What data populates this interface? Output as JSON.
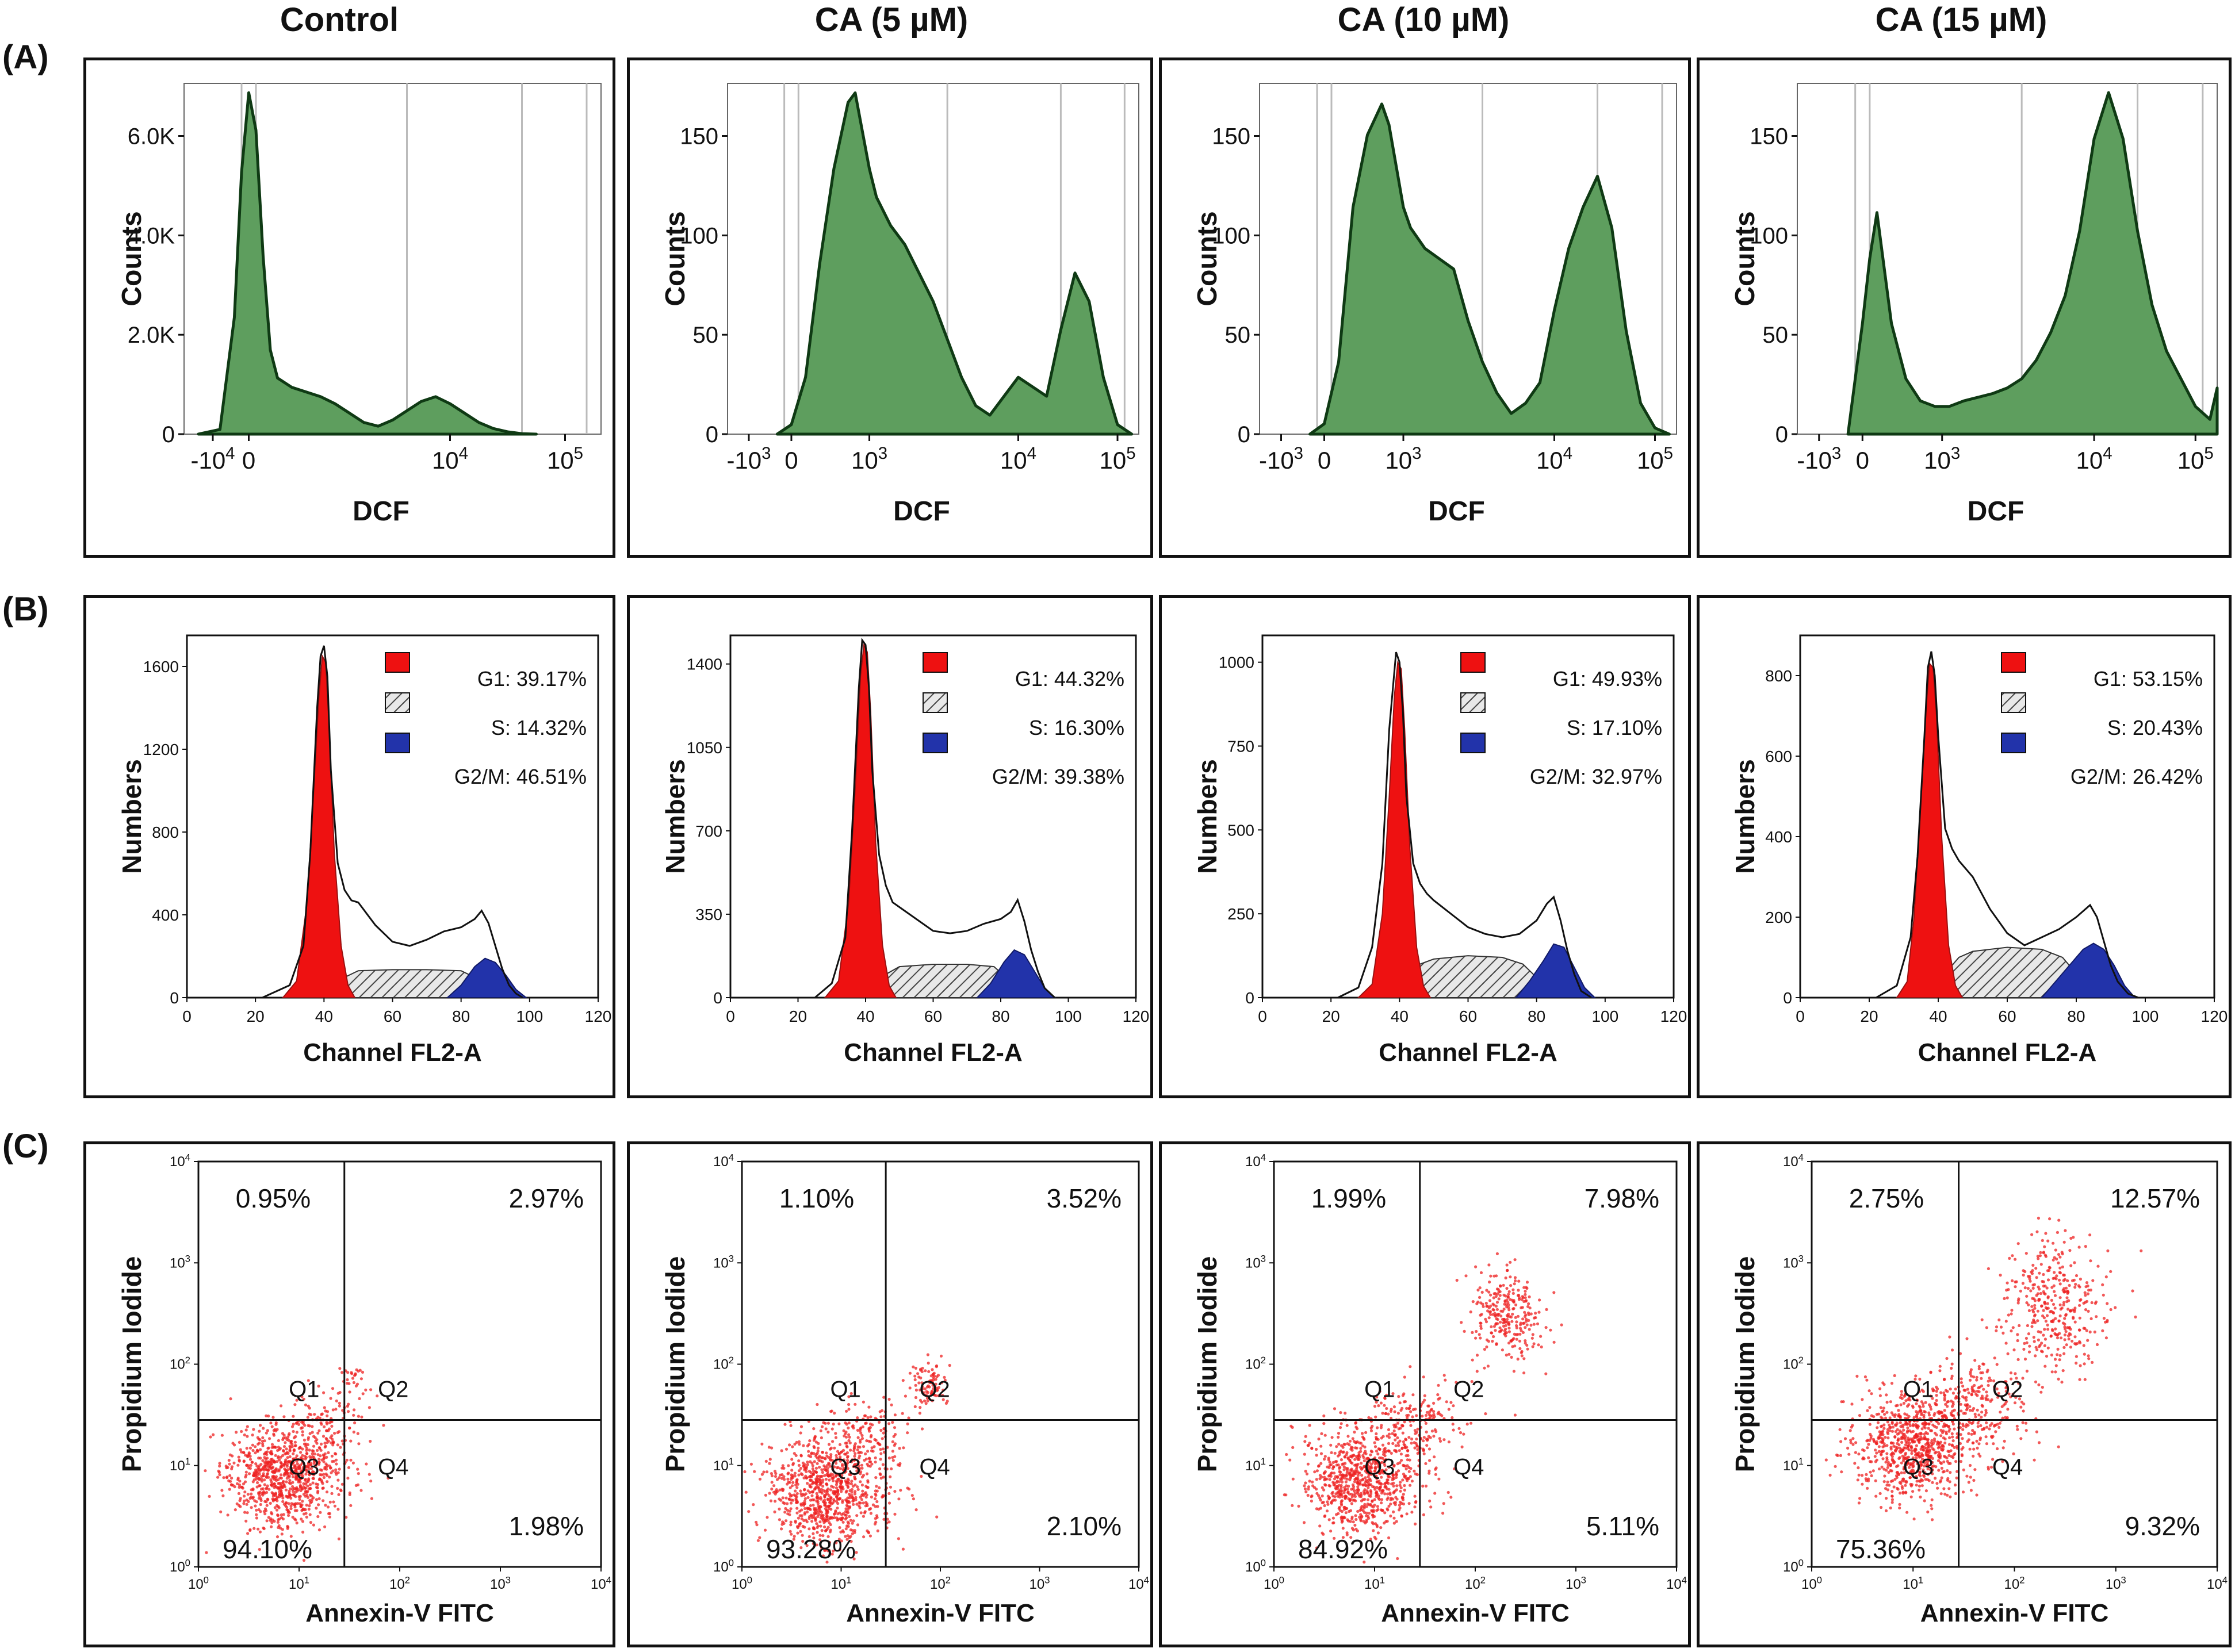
{
  "column_titles": [
    "Control",
    "CA (5 µM)",
    "CA (10 µM)",
    "CA (15 µM)"
  ],
  "row_labels": [
    "(A)",
    "(B)",
    "(C)"
  ],
  "colors": {
    "histogram_fill": "#5e9e5e",
    "histogram_line": "#0f3a14",
    "g1_fill": "#ee1111",
    "s_fill": "#cfcfcf",
    "g2m_fill": "#2233aa",
    "dot_color": "#ee2222"
  },
  "chart_data": [
    {
      "type": "area",
      "row": "A",
      "panel": "Control",
      "xlabel": "DCF",
      "ylabel": "Counts",
      "xtick_labels": [
        "-10^4",
        "0",
        "10^4",
        "10^5"
      ],
      "ytick_labels": [
        "0",
        "2.0K",
        "4.0K",
        "6.0K"
      ],
      "ylim": [
        0,
        7500
      ],
      "x": [
        -0.35,
        -0.2,
        -0.1,
        -0.05,
        0.0,
        0.05,
        0.1,
        0.15,
        0.2,
        0.3,
        0.4,
        0.5,
        0.6,
        0.7,
        0.8,
        0.9,
        1.0,
        1.1,
        1.2,
        1.3,
        1.4,
        1.5,
        1.6,
        1.7,
        1.8,
        1.9,
        2.0
      ],
      "values": [
        0,
        100,
        2500,
        5600,
        7300,
        6500,
        3800,
        1800,
        1200,
        1000,
        900,
        800,
        650,
        450,
        250,
        170,
        300,
        500,
        700,
        800,
        650,
        450,
        250,
        120,
        50,
        10,
        0
      ]
    },
    {
      "type": "area",
      "row": "A",
      "panel": "CA (5 µM)",
      "xlabel": "DCF",
      "ylabel": "Counts",
      "xtick_labels": [
        "-10^3",
        "0",
        "10^3",
        "10^4",
        "10^5"
      ],
      "ytick_labels": [
        "0",
        "50",
        "100",
        "150"
      ],
      "ylim": [
        0,
        185
      ],
      "x": [
        -0.1,
        0.0,
        0.1,
        0.2,
        0.3,
        0.4,
        0.45,
        0.5,
        0.55,
        0.6,
        0.7,
        0.8,
        0.9,
        1.0,
        1.1,
        1.2,
        1.3,
        1.4,
        1.5,
        1.6,
        1.7,
        1.8,
        1.9,
        2.0,
        2.1,
        2.2,
        2.3,
        2.4
      ],
      "values": [
        0,
        5,
        30,
        90,
        140,
        175,
        180,
        160,
        140,
        125,
        110,
        100,
        85,
        70,
        50,
        30,
        15,
        10,
        20,
        30,
        25,
        20,
        55,
        85,
        70,
        30,
        5,
        0
      ]
    },
    {
      "type": "area",
      "row": "A",
      "panel": "CA (10 µM)",
      "xlabel": "DCF",
      "ylabel": "Counts",
      "xtick_labels": [
        "-10^3",
        "0",
        "10^3",
        "10^4",
        "10^5"
      ],
      "ytick_labels": [
        "0",
        "50",
        "100",
        "150"
      ],
      "ylim": [
        0,
        170
      ],
      "x": [
        -0.1,
        0.0,
        0.1,
        0.2,
        0.3,
        0.4,
        0.45,
        0.5,
        0.55,
        0.6,
        0.7,
        0.8,
        0.9,
        1.0,
        1.1,
        1.2,
        1.3,
        1.4,
        1.5,
        1.6,
        1.7,
        1.8,
        1.9,
        2.0,
        2.1,
        2.2,
        2.3,
        2.4
      ],
      "values": [
        0,
        5,
        35,
        110,
        145,
        160,
        150,
        130,
        110,
        100,
        90,
        85,
        80,
        55,
        35,
        20,
        10,
        15,
        25,
        60,
        90,
        110,
        125,
        100,
        50,
        15,
        3,
        0
      ]
    },
    {
      "type": "area",
      "row": "A",
      "panel": "CA (15 µM)",
      "xlabel": "DCF",
      "ylabel": "Counts",
      "xtick_labels": [
        "-10^3",
        "0",
        "10^3",
        "10^4",
        "10^5"
      ],
      "ytick_labels": [
        "0",
        "50",
        "100",
        "150"
      ],
      "ylim": [
        0,
        190
      ],
      "x": [
        -0.1,
        0.0,
        0.05,
        0.1,
        0.15,
        0.2,
        0.3,
        0.4,
        0.5,
        0.6,
        0.7,
        0.8,
        0.9,
        1.0,
        1.1,
        1.2,
        1.3,
        1.4,
        1.5,
        1.6,
        1.7,
        1.8,
        1.9,
        2.0,
        2.1,
        2.2,
        2.3,
        2.4,
        2.45
      ],
      "values": [
        0,
        60,
        95,
        120,
        90,
        60,
        30,
        18,
        15,
        15,
        18,
        20,
        22,
        25,
        30,
        40,
        55,
        75,
        110,
        160,
        185,
        160,
        110,
        70,
        45,
        30,
        15,
        8,
        25
      ]
    },
    {
      "type": "area",
      "row": "B",
      "panel": "Control",
      "xlabel": "Channel FL2-A",
      "ylabel": "Numbers",
      "xlim": [
        0,
        120
      ],
      "ylim": [
        0,
        1750
      ],
      "xtick_labels": [
        "0",
        "20",
        "40",
        "60",
        "80",
        "100",
        "120"
      ],
      "ytick_labels": [
        "0",
        "400",
        "800",
        "1200",
        "1600"
      ],
      "legend": [
        "G1: 39.17%",
        "S: 14.32%",
        "G2/M: 46.51%"
      ],
      "total_x": [
        22,
        30,
        34,
        36,
        38,
        39,
        40,
        41,
        42,
        44,
        46,
        48,
        50,
        55,
        60,
        65,
        70,
        75,
        80,
        84,
        86,
        88,
        90,
        92,
        94,
        96,
        98
      ],
      "total_y": [
        0,
        60,
        250,
        700,
        1400,
        1650,
        1700,
        1550,
        1100,
        650,
        520,
        470,
        460,
        350,
        270,
        250,
        280,
        320,
        340,
        380,
        420,
        360,
        250,
        140,
        60,
        20,
        0
      ],
      "g1_x": [
        28,
        32,
        35,
        37,
        38.5,
        39.5,
        40.5,
        41.5,
        43,
        45,
        47,
        49
      ],
      "g1_y": [
        0,
        80,
        450,
        1000,
        1450,
        1650,
        1620,
        1300,
        700,
        250,
        60,
        0
      ],
      "s_x": [
        40,
        45,
        50,
        60,
        70,
        80,
        85,
        86
      ],
      "s_y": [
        0,
        90,
        130,
        135,
        135,
        130,
        90,
        0
      ],
      "g2m_x": [
        76,
        80,
        84,
        87,
        90,
        93,
        96,
        99
      ],
      "g2m_y": [
        0,
        60,
        150,
        190,
        170,
        110,
        40,
        0
      ]
    },
    {
      "type": "area",
      "row": "B",
      "panel": "CA (5 µM)",
      "xlabel": "Channel FL2-A",
      "ylabel": "Numbers",
      "xlim": [
        0,
        120
      ],
      "ylim": [
        0,
        1520
      ],
      "xtick_labels": [
        "0",
        "20",
        "40",
        "60",
        "80",
        "100",
        "120"
      ],
      "ytick_labels": [
        "0",
        "350",
        "700",
        "1050",
        "1400"
      ],
      "legend": [
        "G1: 44.32%",
        "S: 16.30%",
        "G2/M: 39.38%"
      ],
      "total_x": [
        25,
        30,
        34,
        36,
        38,
        39,
        40,
        41,
        42,
        44,
        46,
        48,
        50,
        55,
        60,
        65,
        70,
        75,
        80,
        83,
        85,
        87,
        89,
        91,
        93,
        96
      ],
      "total_y": [
        0,
        60,
        250,
        700,
        1300,
        1500,
        1480,
        1300,
        950,
        600,
        470,
        400,
        380,
        330,
        280,
        270,
        280,
        310,
        330,
        360,
        410,
        320,
        200,
        110,
        40,
        0
      ],
      "g1_x": [
        28,
        32,
        35,
        37,
        38.5,
        39.5,
        40.5,
        41.5,
        43,
        45,
        47,
        49
      ],
      "g1_y": [
        0,
        70,
        400,
        900,
        1350,
        1480,
        1450,
        1200,
        650,
        220,
        50,
        0
      ],
      "s_x": [
        40,
        45,
        50,
        60,
        70,
        78,
        82,
        84
      ],
      "s_y": [
        0,
        90,
        130,
        140,
        140,
        130,
        80,
        0
      ],
      "g2m_x": [
        73,
        77,
        81,
        84,
        87,
        90,
        93,
        96
      ],
      "g2m_y": [
        0,
        60,
        150,
        200,
        180,
        110,
        40,
        0
      ]
    },
    {
      "type": "area",
      "row": "B",
      "panel": "CA (10 µM)",
      "xlabel": "Channel FL2-A",
      "ylabel": "Numbers",
      "xlim": [
        0,
        120
      ],
      "ylim": [
        0,
        1080
      ],
      "xtick_labels": [
        "0",
        "20",
        "40",
        "60",
        "80",
        "100",
        "120"
      ],
      "ytick_labels": [
        "0",
        "250",
        "500",
        "750",
        "1000"
      ],
      "legend": [
        "G1: 49.93%",
        "S: 17.10%",
        "G2/M: 32.97%"
      ],
      "total_x": [
        22,
        28,
        32,
        35,
        37,
        39,
        40,
        41,
        42,
        44,
        46,
        48,
        50,
        55,
        60,
        65,
        70,
        75,
        80,
        83,
        85,
        87,
        89,
        91,
        93,
        96
      ],
      "total_y": [
        0,
        30,
        150,
        400,
        800,
        1030,
        1000,
        850,
        600,
        400,
        340,
        310,
        290,
        250,
        210,
        190,
        180,
        190,
        230,
        280,
        300,
        230,
        140,
        70,
        20,
        0
      ],
      "g1_x": [
        28,
        32,
        35,
        37,
        38.5,
        39.5,
        40.5,
        41.5,
        43,
        45,
        47,
        49
      ],
      "g1_y": [
        0,
        40,
        250,
        600,
        900,
        1000,
        980,
        800,
        450,
        150,
        35,
        0
      ],
      "s_x": [
        38,
        42,
        46,
        50,
        60,
        70,
        76,
        80,
        83
      ],
      "s_y": [
        0,
        60,
        100,
        115,
        125,
        120,
        100,
        60,
        0
      ],
      "g2m_x": [
        74,
        78,
        82,
        85,
        88,
        91,
        94,
        97
      ],
      "g2m_y": [
        0,
        50,
        110,
        160,
        150,
        90,
        30,
        0
      ]
    },
    {
      "type": "area",
      "row": "B",
      "panel": "CA (15 µM)",
      "xlabel": "Channel FL2-A",
      "ylabel": "Numbers",
      "xlim": [
        0,
        120
      ],
      "ylim": [
        0,
        900
      ],
      "xtick_labels": [
        "0",
        "20",
        "40",
        "60",
        "80",
        "100",
        "120"
      ],
      "ytick_labels": [
        "0",
        "200",
        "400",
        "600",
        "800"
      ],
      "legend": [
        "G1: 53.15%",
        "S: 20.43%",
        "G2/M: 26.42%"
      ],
      "total_x": [
        22,
        28,
        32,
        34,
        36,
        37,
        38,
        39,
        40,
        42,
        44,
        46,
        48,
        50,
        55,
        60,
        65,
        70,
        75,
        80,
        84,
        86,
        88,
        90,
        92,
        95,
        98
      ],
      "total_y": [
        0,
        30,
        150,
        350,
        650,
        820,
        860,
        800,
        650,
        420,
        370,
        340,
        320,
        300,
        220,
        160,
        130,
        150,
        170,
        200,
        230,
        200,
        140,
        80,
        40,
        10,
        0
      ],
      "g1_x": [
        28,
        31,
        33,
        35,
        36.5,
        37.5,
        38.5,
        39.5,
        41,
        43,
        45,
        47
      ],
      "g1_y": [
        0,
        40,
        200,
        500,
        720,
        830,
        820,
        700,
        400,
        130,
        30,
        0
      ],
      "s_x": [
        37,
        42,
        46,
        50,
        60,
        70,
        76,
        80,
        84
      ],
      "s_y": [
        0,
        60,
        100,
        115,
        125,
        120,
        100,
        60,
        0
      ],
      "g2m_x": [
        70,
        74,
        78,
        82,
        85,
        88,
        91,
        94,
        97
      ],
      "g2m_y": [
        0,
        40,
        80,
        120,
        135,
        120,
        80,
        30,
        0
      ]
    },
    {
      "type": "scatter",
      "row": "C",
      "panel": "Control",
      "xlabel": "Annexin-V FITC",
      "ylabel": "Propidium Iodide",
      "xlim": [
        0,
        4
      ],
      "ylim": [
        0,
        4
      ],
      "xtick_labels": [
        "10^0",
        "10^1",
        "10^2",
        "10^3",
        "10^4"
      ],
      "ytick_labels": [
        "10^0",
        "10^1",
        "10^2",
        "10^3",
        "10^4"
      ],
      "gate": [
        1.45,
        1.45
      ],
      "quadrant_names": [
        "Q1",
        "Q2",
        "Q3",
        "Q4"
      ],
      "quadrant_percents": [
        "0.95%",
        "2.97%",
        "94.10%",
        "1.98%"
      ],
      "clusters": [
        {
          "cx": 0.85,
          "cy": 0.9,
          "sx": 0.3,
          "sy": 0.25,
          "n": 900
        },
        {
          "cx": 1.3,
          "cy": 1.4,
          "sx": 0.2,
          "sy": 0.18,
          "n": 120
        },
        {
          "cx": 1.55,
          "cy": 1.85,
          "sx": 0.08,
          "sy": 0.08,
          "n": 25
        }
      ]
    },
    {
      "type": "scatter",
      "row": "C",
      "panel": "CA (5 µM)",
      "xlabel": "Annexin-V FITC",
      "ylabel": "Propidium Iodide",
      "xlim": [
        0,
        4
      ],
      "ylim": [
        0,
        4
      ],
      "xtick_labels": [
        "10^0",
        "10^1",
        "10^2",
        "10^3",
        "10^4"
      ],
      "ytick_labels": [
        "10^0",
        "10^1",
        "10^2",
        "10^3",
        "10^4"
      ],
      "gate": [
        1.45,
        1.45
      ],
      "quadrant_names": [
        "Q1",
        "Q2",
        "Q3",
        "Q4"
      ],
      "quadrant_percents": [
        "1.10%",
        "3.52%",
        "93.28%",
        "2.10%"
      ],
      "clusters": [
        {
          "cx": 0.85,
          "cy": 0.75,
          "sx": 0.3,
          "sy": 0.28,
          "n": 900
        },
        {
          "cx": 1.3,
          "cy": 1.3,
          "sx": 0.2,
          "sy": 0.18,
          "n": 130
        },
        {
          "cx": 1.9,
          "cy": 1.8,
          "sx": 0.1,
          "sy": 0.12,
          "n": 90
        }
      ]
    },
    {
      "type": "scatter",
      "row": "C",
      "panel": "CA (10 µM)",
      "xlabel": "Annexin-V FITC",
      "ylabel": "Propidium Iodide",
      "xlim": [
        0,
        4
      ],
      "ylim": [
        0,
        4
      ],
      "xtick_labels": [
        "10^0",
        "10^1",
        "10^2",
        "10^3",
        "10^4"
      ],
      "ytick_labels": [
        "10^0",
        "10^1",
        "10^2",
        "10^3",
        "10^4"
      ],
      "gate": [
        1.45,
        1.45
      ],
      "quadrant_names": [
        "Q1",
        "Q2",
        "Q3",
        "Q4"
      ],
      "quadrant_percents": [
        "1.99%",
        "7.98%",
        "84.92%",
        "5.11%"
      ],
      "clusters": [
        {
          "cx": 0.85,
          "cy": 0.85,
          "sx": 0.28,
          "sy": 0.25,
          "n": 800
        },
        {
          "cx": 1.35,
          "cy": 1.4,
          "sx": 0.25,
          "sy": 0.2,
          "n": 200
        },
        {
          "cx": 2.3,
          "cy": 2.5,
          "sx": 0.18,
          "sy": 0.22,
          "n": 280
        }
      ]
    },
    {
      "type": "scatter",
      "row": "C",
      "panel": "CA (15 µM)",
      "xlabel": "Annexin-V FITC",
      "ylabel": "Propidium Iodide",
      "xlim": [
        0,
        4
      ],
      "ylim": [
        0,
        4
      ],
      "xtick_labels": [
        "10^0",
        "10^1",
        "10^2",
        "10^3",
        "10^4"
      ],
      "ytick_labels": [
        "10^0",
        "10^1",
        "10^2",
        "10^3",
        "10^4"
      ],
      "gate": [
        1.45,
        1.45
      ],
      "quadrant_names": [
        "Q1",
        "Q2",
        "Q3",
        "Q4"
      ],
      "quadrant_percents": [
        "2.75%",
        "12.57%",
        "75.36%",
        "9.32%"
      ],
      "clusters": [
        {
          "cx": 1.0,
          "cy": 1.2,
          "sx": 0.3,
          "sy": 0.28,
          "n": 800
        },
        {
          "cx": 1.6,
          "cy": 1.6,
          "sx": 0.3,
          "sy": 0.25,
          "n": 260
        },
        {
          "cx": 2.4,
          "cy": 2.6,
          "sx": 0.25,
          "sy": 0.35,
          "n": 380
        }
      ]
    }
  ]
}
